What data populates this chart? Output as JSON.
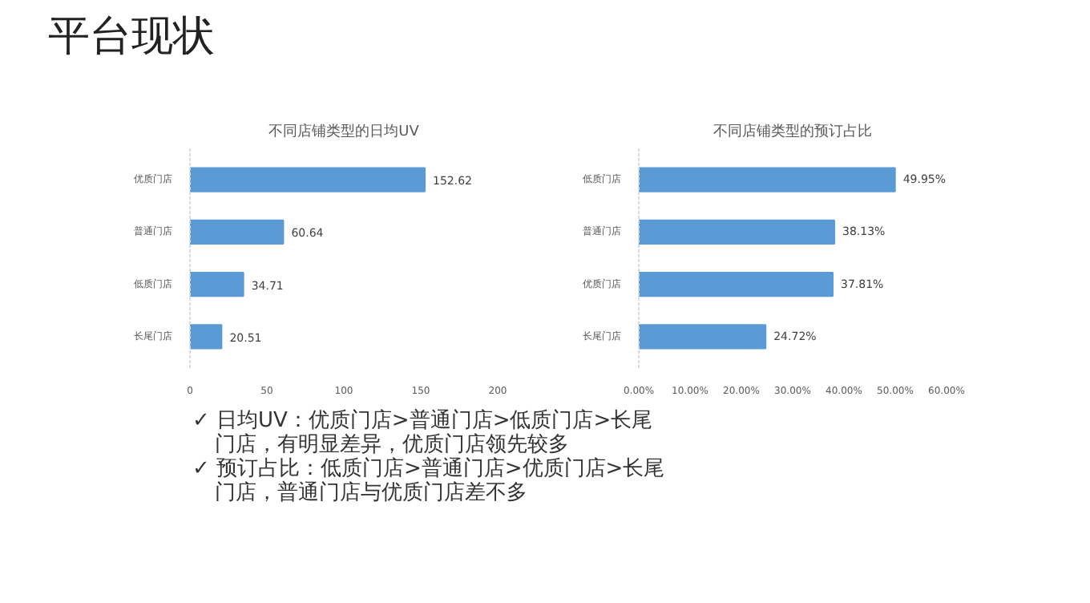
{
  "chart_data": [
    {
      "type": "other",
      "title": "平台现状",
      "annotations": [
        "✓ 日均UV：优质门店>普通门店>低质门店>长尾门店，有明显差异，优质门店领先较多",
        "✓ 预订占比：低质门店>普通门店>优质门店>长尾门店，普通门店与优质门店差不多"
      ]
    },
    {
      "type": "bar",
      "orientation": "horizontal",
      "title": "不同店铺类型的日均UV",
      "categories": [
        "优质门店",
        "普通门店",
        "低质门店",
        "长尾门店"
      ],
      "values": [
        152.62,
        60.64,
        34.71,
        20.51
      ],
      "color": "#5b9bd5",
      "xlim": [
        0,
        200
      ],
      "xticks": [
        0,
        50,
        100,
        150,
        200
      ],
      "data_labels": true
    },
    {
      "type": "bar",
      "orientation": "horizontal",
      "title": "不同店铺类型的预订占比",
      "categories": [
        "低质门店",
        "普通门店",
        "优质门店",
        "长尾门店"
      ],
      "values": [
        49.95,
        38.13,
        37.81,
        24.72
      ],
      "value_labels": [
        "49.95%",
        "38.13%",
        "37.81%",
        "24.72%"
      ],
      "color": "#5b9bd5",
      "xlim": [
        0,
        60
      ],
      "xticks": [
        {
          "value": 0,
          "label": "0.00%"
        },
        {
          "value": 10,
          "label": "10.00%"
        },
        {
          "value": 20,
          "label": "20.00%"
        },
        {
          "value": 30,
          "label": "30.00%"
        },
        {
          "value": 40,
          "label": "40.00%"
        },
        {
          "value": 50,
          "label": "50.00%"
        },
        {
          "value": 60,
          "label": "60.00%"
        }
      ]
    }
  ]
}
